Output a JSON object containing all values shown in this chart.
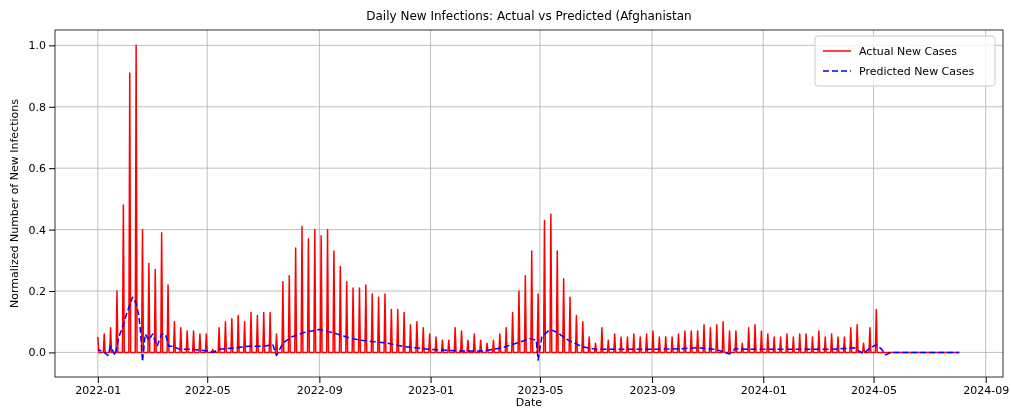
{
  "chart_data": {
    "type": "line",
    "title": "Daily New Infections: Actual vs Predicted (Afghanistan",
    "xlabel": "Date",
    "ylabel": "Normalized Number of New Infections",
    "xlim": [
      "2021-11-15",
      "2024-09-20"
    ],
    "xticks": [
      "2022-01",
      "2022-05",
      "2022-09",
      "2023-01",
      "2023-05",
      "2023-09",
      "2024-01",
      "2024-05",
      "2024-09"
    ],
    "ylim": [
      -0.08,
      1.05
    ],
    "yticks": [
      {
        "value": 0,
        "label": "0.0"
      },
      {
        "value": 0.2,
        "label": "0.2"
      },
      {
        "value": 0.4,
        "label": "0.4"
      },
      {
        "value": 0.6,
        "label": "0.6"
      },
      {
        "value": 0.8,
        "label": "0.8"
      },
      {
        "value": 1,
        "label": "1.0"
      }
    ],
    "grid": true,
    "legend": "top right",
    "series": [
      {
        "name": "Actual New Cases",
        "color": "#ff0000",
        "line_style": "solid",
        "x": [
          "2022-01-01",
          "2022-01-02",
          "2022-01-07",
          "2022-01-08",
          "2022-01-09",
          "2022-01-14",
          "2022-01-15",
          "2022-01-16",
          "2022-01-21",
          "2022-01-22",
          "2022-01-23",
          "2022-01-28",
          "2022-01-29",
          "2022-01-30",
          "2022-02-04",
          "2022-02-05",
          "2022-02-06",
          "2022-02-11",
          "2022-02-12",
          "2022-02-13",
          "2022-02-18",
          "2022-02-19",
          "2022-02-20",
          "2022-02-25",
          "2022-02-26",
          "2022-02-27",
          "2022-03-04",
          "2022-03-05",
          "2022-03-06",
          "2022-03-11",
          "2022-03-12",
          "2022-03-13",
          "2022-03-18",
          "2022-03-19",
          "2022-03-20",
          "2022-03-25",
          "2022-03-26",
          "2022-03-27",
          "2022-04-01",
          "2022-04-02",
          "2022-04-03",
          "2022-04-08",
          "2022-04-09",
          "2022-04-10",
          "2022-04-15",
          "2022-04-16",
          "2022-04-17",
          "2022-04-22",
          "2022-04-23",
          "2022-04-24",
          "2022-04-29",
          "2022-04-30",
          "2022-05-01",
          "2022-05-06",
          "2022-05-07",
          "2022-05-08",
          "2022-05-13",
          "2022-05-14",
          "2022-05-15",
          "2022-05-20",
          "2022-05-21",
          "2022-05-22",
          "2022-05-27",
          "2022-05-28",
          "2022-05-29",
          "2022-06-03",
          "2022-06-04",
          "2022-06-05",
          "2022-06-10",
          "2022-06-11",
          "2022-06-12",
          "2022-06-17",
          "2022-06-18",
          "2022-06-19",
          "2022-06-24",
          "2022-06-25",
          "2022-06-26",
          "2022-07-01",
          "2022-07-02",
          "2022-07-03",
          "2022-07-08",
          "2022-07-09",
          "2022-07-10",
          "2022-07-15",
          "2022-07-16",
          "2022-07-17",
          "2022-07-22",
          "2022-07-23",
          "2022-07-24",
          "2022-07-29",
          "2022-07-30",
          "2022-07-31",
          "2022-08-05",
          "2022-08-06",
          "2022-08-07",
          "2022-08-12",
          "2022-08-13",
          "2022-08-14",
          "2022-08-19",
          "2022-08-20",
          "2022-08-21",
          "2022-08-26",
          "2022-08-27",
          "2022-08-28",
          "2022-09-02",
          "2022-09-03",
          "2022-09-04",
          "2022-09-09",
          "2022-09-10",
          "2022-09-11",
          "2022-09-16",
          "2022-09-17",
          "2022-09-18",
          "2022-09-23",
          "2022-09-24",
          "2022-09-25",
          "2022-09-30",
          "2022-10-01",
          "2022-10-02",
          "2022-10-07",
          "2022-10-08",
          "2022-10-09",
          "2022-10-14",
          "2022-10-15",
          "2022-10-16",
          "2022-10-21",
          "2022-10-22",
          "2022-10-23",
          "2022-10-28",
          "2022-10-29",
          "2022-10-30",
          "2022-11-04",
          "2022-11-05",
          "2022-11-06",
          "2022-11-11",
          "2022-11-12",
          "2022-11-13",
          "2022-11-18",
          "2022-11-19",
          "2022-11-20",
          "2022-11-25",
          "2022-11-26",
          "2022-11-27",
          "2022-12-02",
          "2022-12-03",
          "2022-12-04",
          "2022-12-09",
          "2022-12-10",
          "2022-12-11",
          "2022-12-16",
          "2022-12-17",
          "2022-12-18",
          "2022-12-23",
          "2022-12-24",
          "2022-12-25",
          "2022-12-30",
          "2022-12-31",
          "2023-01-01",
          "2023-01-06",
          "2023-01-07",
          "2023-01-08",
          "2023-01-13",
          "2023-01-14",
          "2023-01-15",
          "2023-01-20",
          "2023-01-21",
          "2023-01-22",
          "2023-01-27",
          "2023-01-28",
          "2023-01-29",
          "2023-02-03",
          "2023-02-04",
          "2023-02-05",
          "2023-02-10",
          "2023-02-11",
          "2023-02-12",
          "2023-02-17",
          "2023-02-18",
          "2023-02-19",
          "2023-02-24",
          "2023-02-25",
          "2023-02-26",
          "2023-03-03",
          "2023-03-04",
          "2023-03-05",
          "2023-03-10",
          "2023-03-11",
          "2023-03-12",
          "2023-03-17",
          "2023-03-18",
          "2023-03-19",
          "2023-03-24",
          "2023-03-25",
          "2023-03-26",
          "2023-03-31",
          "2023-04-01",
          "2023-04-02",
          "2023-04-07",
          "2023-04-08",
          "2023-04-09",
          "2023-04-14",
          "2023-04-15",
          "2023-04-16",
          "2023-04-21",
          "2023-04-22",
          "2023-04-23",
          "2023-04-28",
          "2023-04-29",
          "2023-04-30",
          "2023-05-05",
          "2023-05-06",
          "2023-05-07",
          "2023-05-12",
          "2023-05-13",
          "2023-05-14",
          "2023-05-19",
          "2023-05-20",
          "2023-05-21",
          "2023-05-26",
          "2023-05-27",
          "2023-05-28",
          "2023-06-02",
          "2023-06-03",
          "2023-06-04",
          "2023-06-09",
          "2023-06-10",
          "2023-06-11",
          "2023-06-16",
          "2023-06-17",
          "2023-06-18",
          "2023-06-23",
          "2023-06-24",
          "2023-06-25",
          "2023-06-30",
          "2023-07-01",
          "2023-07-02",
          "2023-07-07",
          "2023-07-08",
          "2023-07-09",
          "2023-07-14",
          "2023-07-15",
          "2023-07-16",
          "2023-07-21",
          "2023-07-22",
          "2023-07-23",
          "2023-07-28",
          "2023-07-29",
          "2023-07-30",
          "2023-08-04",
          "2023-08-05",
          "2023-08-06",
          "2023-08-11",
          "2023-08-12",
          "2023-08-13",
          "2023-08-18",
          "2023-08-19",
          "2023-08-20",
          "2023-08-25",
          "2023-08-26",
          "2023-08-27",
          "2023-09-01",
          "2023-09-02",
          "2023-09-03",
          "2023-09-08",
          "2023-09-09",
          "2023-09-10",
          "2023-09-15",
          "2023-09-16",
          "2023-09-17",
          "2023-09-22",
          "2023-09-23",
          "2023-09-24",
          "2023-09-29",
          "2023-09-30",
          "2023-10-01",
          "2023-10-06",
          "2023-10-07",
          "2023-10-08",
          "2023-10-13",
          "2023-10-14",
          "2023-10-15",
          "2023-10-20",
          "2023-10-21",
          "2023-10-22",
          "2023-10-27",
          "2023-10-28",
          "2023-10-29",
          "2023-11-03",
          "2023-11-04",
          "2023-11-05",
          "2023-11-10",
          "2023-11-11",
          "2023-11-12",
          "2023-11-17",
          "2023-11-18",
          "2023-11-19",
          "2023-11-24",
          "2023-11-25",
          "2023-11-26",
          "2023-12-01",
          "2023-12-02",
          "2023-12-03",
          "2023-12-08",
          "2023-12-09",
          "2023-12-10",
          "2023-12-15",
          "2023-12-16",
          "2023-12-17",
          "2023-12-22",
          "2023-12-23",
          "2023-12-24",
          "2023-12-29",
          "2023-12-30",
          "2023-12-31",
          "2024-01-05",
          "2024-01-06",
          "2024-01-07",
          "2024-01-12",
          "2024-01-13",
          "2024-01-14",
          "2024-01-19",
          "2024-01-20",
          "2024-01-21",
          "2024-01-26",
          "2024-01-27",
          "2024-01-28",
          "2024-02-02",
          "2024-02-03",
          "2024-02-04",
          "2024-02-09",
          "2024-02-10",
          "2024-02-11",
          "2024-02-16",
          "2024-02-17",
          "2024-02-18",
          "2024-02-23",
          "2024-02-24",
          "2024-02-25",
          "2024-03-01",
          "2024-03-02",
          "2024-03-03",
          "2024-03-08",
          "2024-03-09",
          "2024-03-10",
          "2024-03-15",
          "2024-03-16",
          "2024-03-17",
          "2024-03-22",
          "2024-03-23",
          "2024-03-24",
          "2024-03-29",
          "2024-03-30",
          "2024-03-31",
          "2024-04-05",
          "2024-04-06",
          "2024-04-07",
          "2024-04-12",
          "2024-04-13",
          "2024-04-14",
          "2024-04-19",
          "2024-04-20",
          "2024-04-21",
          "2024-04-26",
          "2024-04-27",
          "2024-04-28",
          "2024-05-03",
          "2024-05-04",
          "2024-05-05",
          "2024-08-03"
        ],
        "values": [
          0.05,
          0,
          0,
          0.06,
          0,
          0,
          0.08,
          0,
          0,
          0.2,
          0,
          0,
          0.48,
          0,
          0,
          0.91,
          0,
          0,
          1.0,
          0,
          0,
          0.4,
          0,
          0,
          0.29,
          0,
          0,
          0.27,
          0,
          0,
          0.39,
          0,
          0,
          0.22,
          0,
          0,
          0.1,
          0,
          0,
          0.08,
          0,
          0,
          0.07,
          0,
          0,
          0.07,
          0,
          0,
          0.06,
          0,
          0,
          0.06,
          0,
          0,
          0.01,
          0,
          0,
          0.08,
          0,
          0,
          0.1,
          0,
          0,
          0.11,
          0,
          0,
          0.12,
          0,
          0,
          0.1,
          0,
          0,
          0.13,
          0,
          0,
          0.12,
          0,
          0,
          0.13,
          0,
          0,
          0.13,
          0,
          0,
          0.06,
          0,
          0,
          0.23,
          0,
          0,
          0.25,
          0,
          0,
          0.34,
          0,
          0,
          0.41,
          0,
          0,
          0.37,
          0,
          0,
          0.4,
          0,
          0,
          0.38,
          0,
          0,
          0.4,
          0,
          0,
          0.33,
          0,
          0,
          0.28,
          0,
          0,
          0.23,
          0,
          0,
          0.21,
          0,
          0,
          0.21,
          0,
          0,
          0.22,
          0,
          0,
          0.19,
          0,
          0,
          0.18,
          0,
          0,
          0.19,
          0,
          0,
          0.14,
          0,
          0,
          0.14,
          0,
          0,
          0.13,
          0,
          0,
          0.09,
          0,
          0,
          0.1,
          0,
          0,
          0.08,
          0,
          0,
          0.06,
          0,
          0,
          0.05,
          0,
          0,
          0.04,
          0,
          0,
          0.04,
          0,
          0,
          0.08,
          0,
          0,
          0.07,
          0,
          0,
          0.04,
          0,
          0,
          0.06,
          0,
          0,
          0.04,
          0,
          0,
          0.03,
          0,
          0,
          0.04,
          0,
          0,
          0.06,
          0,
          0,
          0.08,
          0,
          0,
          0.13,
          0,
          0,
          0.2,
          0,
          0,
          0.25,
          0,
          0,
          0.33,
          0,
          0,
          0.19,
          0,
          0,
          0.43,
          0,
          0,
          0.45,
          0,
          0,
          0.33,
          0,
          0,
          0.24,
          0,
          0,
          0.18,
          0,
          0,
          0.12,
          0,
          0,
          0.1,
          0,
          0,
          0.05,
          0,
          0,
          0.03,
          0,
          0,
          0.08,
          0,
          0,
          0.04,
          0,
          0,
          0.06,
          0,
          0,
          0.05,
          0,
          0,
          0.05,
          0,
          0,
          0.06,
          0,
          0,
          0.05,
          0,
          0,
          0.06,
          0,
          0,
          0.07,
          0,
          0,
          0.05,
          0,
          0,
          0.05,
          0,
          0,
          0.05,
          0,
          0,
          0.06,
          0,
          0,
          0.07,
          0,
          0,
          0.07,
          0,
          0,
          0.07,
          0,
          0,
          0.09,
          0,
          0,
          0.08,
          0,
          0,
          0.09,
          0,
          0,
          0.1,
          0,
          0,
          0.07,
          0,
          0,
          0.07,
          0,
          0,
          0.03,
          0,
          0,
          0.08,
          0,
          0,
          0.09,
          0,
          0,
          0.07,
          0,
          0,
          0.06,
          0,
          0,
          0.05,
          0,
          0,
          0.05,
          0,
          0,
          0.06,
          0,
          0,
          0.05,
          0,
          0,
          0.06,
          0,
          0,
          0.06,
          0,
          0,
          0.05,
          0,
          0,
          0.07,
          0,
          0,
          0.05,
          0,
          0,
          0.06,
          0,
          0,
          0.05,
          0,
          0,
          0.05,
          0,
          0,
          0.08,
          0,
          0,
          0.09,
          0,
          0,
          0.03,
          0,
          0,
          0.08,
          0,
          0,
          0.14,
          0,
          0
        ]
      },
      {
        "name": "Predicted New Cases",
        "color": "#0000ff",
        "line_style": "dashed",
        "x": [
          "2022-01-01",
          "2022-01-08",
          "2022-01-12",
          "2022-01-15",
          "2022-01-20",
          "2022-01-24",
          "2022-01-29",
          "2022-02-02",
          "2022-02-08",
          "2022-02-12",
          "2022-02-15",
          "2022-02-17",
          "2022-02-19",
          "2022-02-22",
          "2022-02-26",
          "2022-03-02",
          "2022-03-07",
          "2022-03-12",
          "2022-03-16",
          "2022-03-20",
          "2022-03-24",
          "2022-04-01",
          "2022-04-15",
          "2022-05-01",
          "2022-05-07",
          "2022-05-14",
          "2022-06-01",
          "2022-06-15",
          "2022-07-01",
          "2022-07-12",
          "2022-07-16",
          "2022-07-23",
          "2022-08-01",
          "2022-08-15",
          "2022-09-01",
          "2022-09-15",
          "2022-10-01",
          "2022-10-15",
          "2022-11-01",
          "2022-11-15",
          "2022-12-01",
          "2022-12-15",
          "2023-01-01",
          "2023-02-01",
          "2023-03-01",
          "2023-03-20",
          "2023-04-05",
          "2023-04-20",
          "2023-04-27",
          "2023-04-29",
          "2023-05-03",
          "2023-05-12",
          "2023-05-20",
          "2023-06-01",
          "2023-06-15",
          "2023-07-01",
          "2023-08-01",
          "2023-09-01",
          "2023-10-01",
          "2023-10-20",
          "2023-11-10",
          "2023-11-25",
          "2023-12-01",
          "2023-12-20",
          "2024-01-15",
          "2024-02-15",
          "2024-03-15",
          "2024-04-10",
          "2024-04-20",
          "2024-04-27",
          "2024-05-04",
          "2024-05-10",
          "2024-05-14",
          "2024-05-20",
          "2024-08-03"
        ],
        "values": [
          0.01,
          0.0,
          -0.01,
          0.02,
          -0.01,
          0.05,
          0.09,
          0.13,
          0.18,
          0.16,
          0.12,
          0.06,
          -0.03,
          0.06,
          0.04,
          0.06,
          0.02,
          0.06,
          0.06,
          0.02,
          0.02,
          0.01,
          0.01,
          0.005,
          0.0,
          0.01,
          0.015,
          0.02,
          0.02,
          0.025,
          -0.01,
          0.03,
          0.05,
          0.065,
          0.075,
          0.065,
          0.05,
          0.04,
          0.035,
          0.03,
          0.02,
          0.015,
          0.01,
          0.005,
          0.005,
          0.015,
          0.03,
          0.045,
          0.04,
          -0.025,
          0.05,
          0.075,
          0.065,
          0.04,
          0.02,
          0.01,
          0.01,
          0.01,
          0.012,
          0.015,
          0.01,
          -0.005,
          0.012,
          0.01,
          0.01,
          0.01,
          0.01,
          0.015,
          -0.005,
          0.015,
          0.025,
          0.01,
          -0.008,
          0.0,
          0.0
        ]
      }
    ]
  }
}
